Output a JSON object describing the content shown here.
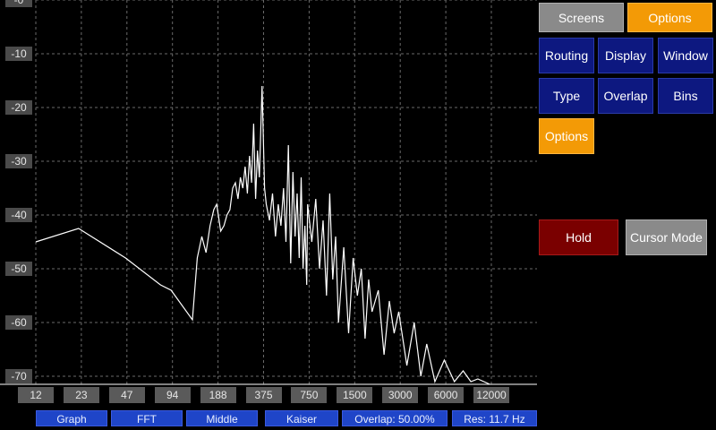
{
  "chart_data": {
    "type": "line",
    "y_ticks": [
      "-0",
      "-10",
      "-20",
      "-30",
      "-40",
      "-50",
      "-60",
      "-70"
    ],
    "x_ticks": [
      "12",
      "23",
      "47",
      "94",
      "188",
      "375",
      "750",
      "1500",
      "3000",
      "6000",
      "12000"
    ],
    "ylim": [
      -70,
      0
    ],
    "grid": true,
    "series": [
      {
        "values": [
          [
            12,
            -45
          ],
          [
            23,
            -42.5
          ],
          [
            47,
            -48
          ],
          [
            80,
            -53
          ],
          [
            94,
            -54
          ],
          [
            130,
            -59.5
          ],
          [
            140,
            -48
          ],
          [
            150,
            -44
          ],
          [
            160,
            -47
          ],
          [
            170,
            -42
          ],
          [
            180,
            -39
          ],
          [
            188,
            -38
          ],
          [
            200,
            -43
          ],
          [
            210,
            -42
          ],
          [
            220,
            -40
          ],
          [
            230,
            -39
          ],
          [
            240,
            -35
          ],
          [
            250,
            -34
          ],
          [
            260,
            -37
          ],
          [
            270,
            -33
          ],
          [
            280,
            -35
          ],
          [
            290,
            -31
          ],
          [
            300,
            -36
          ],
          [
            310,
            -29
          ],
          [
            320,
            -34
          ],
          [
            330,
            -23
          ],
          [
            340,
            -37
          ],
          [
            350,
            -28
          ],
          [
            360,
            -33
          ],
          [
            375,
            -16
          ],
          [
            390,
            -35
          ],
          [
            400,
            -38
          ],
          [
            420,
            -41
          ],
          [
            440,
            -36
          ],
          [
            460,
            -44
          ],
          [
            480,
            -38
          ],
          [
            500,
            -42
          ],
          [
            520,
            -35
          ],
          [
            540,
            -45
          ],
          [
            560,
            -27
          ],
          [
            580,
            -49
          ],
          [
            600,
            -32
          ],
          [
            620,
            -44
          ],
          [
            640,
            -36
          ],
          [
            660,
            -48
          ],
          [
            680,
            -33
          ],
          [
            700,
            -50
          ],
          [
            720,
            -42
          ],
          [
            740,
            -53
          ],
          [
            750,
            -38
          ],
          [
            800,
            -45
          ],
          [
            850,
            -37
          ],
          [
            900,
            -50
          ],
          [
            950,
            -41
          ],
          [
            1000,
            -55
          ],
          [
            1050,
            -36
          ],
          [
            1100,
            -52
          ],
          [
            1150,
            -44
          ],
          [
            1200,
            -60
          ],
          [
            1300,
            -46
          ],
          [
            1400,
            -62
          ],
          [
            1500,
            -48
          ],
          [
            1600,
            -55
          ],
          [
            1700,
            -50
          ],
          [
            1800,
            -63
          ],
          [
            1900,
            -52
          ],
          [
            2000,
            -58
          ],
          [
            2200,
            -54
          ],
          [
            2400,
            -66
          ],
          [
            2600,
            -56
          ],
          [
            2800,
            -62
          ],
          [
            3000,
            -58
          ],
          [
            3400,
            -68
          ],
          [
            3800,
            -60
          ],
          [
            4200,
            -70
          ],
          [
            4600,
            -64
          ],
          [
            5200,
            -71
          ],
          [
            6000,
            -67
          ],
          [
            7000,
            -71
          ],
          [
            8000,
            -69
          ],
          [
            9000,
            -71
          ],
          [
            10000,
            -70.5
          ],
          [
            12000,
            -71.5
          ]
        ]
      }
    ]
  },
  "status_bar": [
    "Graph",
    "FFT",
    "Middle",
    "Kaiser",
    "Overlap: 50.00%",
    "Res: 11.7 Hz"
  ],
  "buttons": {
    "screens": "Screens",
    "options_top": "Options",
    "routing": "Routing",
    "display": "Display",
    "window": "Window",
    "type": "Type",
    "overlap": "Overlap",
    "bins": "Bins",
    "options_sub": "Options",
    "hold": "Hold",
    "cursor_mode": "Cursor Mode"
  },
  "colors": {
    "accent_orange": "#f39a06",
    "navy": "#0d1880",
    "status_blue": "#1f45c8",
    "hold_red": "#7a0000",
    "trace": "#ffffff"
  }
}
